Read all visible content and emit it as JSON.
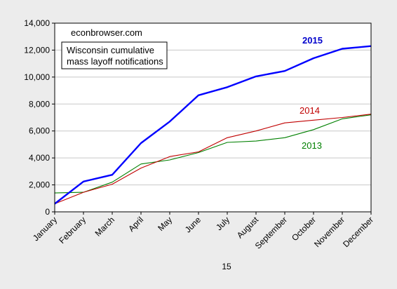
{
  "chart_data": {
    "type": "line",
    "categories": [
      "January",
      "February",
      "March",
      "April",
      "May",
      "June",
      "July",
      "August",
      "September",
      "October",
      "November",
      "December"
    ],
    "series": [
      {
        "name": "2015",
        "color": "#0000ff",
        "values": [
          600,
          2250,
          2750,
          5100,
          6700,
          8650,
          9250,
          10050,
          10450,
          11400,
          12100,
          12300
        ]
      },
      {
        "name": "2014",
        "color": "#c00000",
        "values": [
          600,
          1450,
          2050,
          3250,
          4100,
          4450,
          5500,
          6000,
          6600,
          6800,
          7000,
          7250
        ]
      },
      {
        "name": "2013",
        "color": "#008000",
        "values": [
          1400,
          1450,
          2200,
          3550,
          3850,
          4400,
          5150,
          5250,
          5500,
          6100,
          6900,
          7200
        ]
      }
    ],
    "yticks": [
      "0",
      "2,000",
      "4,000",
      "6,000",
      "8,000",
      "10,000",
      "12,000",
      "14,000"
    ],
    "ylim": [
      0,
      14000
    ],
    "xlabel": "15",
    "ylabel": "",
    "grid": true,
    "annotations": {
      "source": "econbrowser.com",
      "box_line1": "Wisconsin cumulative",
      "box_line2": "mass layoff notifications"
    }
  }
}
